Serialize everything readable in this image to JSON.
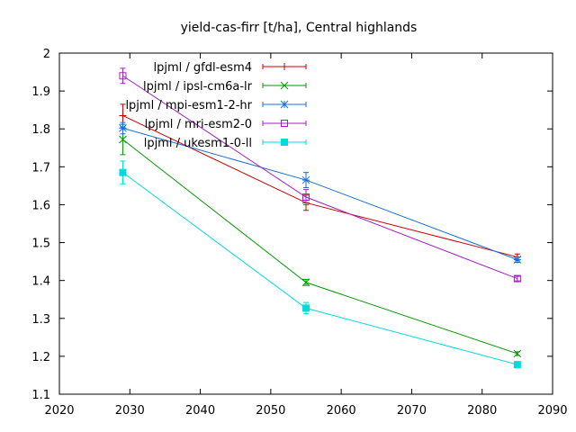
{
  "chart_data": {
    "type": "line",
    "title": "yield-cas-firr [t/ha], Central highlands",
    "xlabel": "",
    "ylabel": "",
    "xlim": [
      2020,
      2090
    ],
    "ylim": [
      1.1,
      2.0
    ],
    "x_ticks": [
      "2020",
      "2030",
      "2040",
      "2050",
      "2060",
      "2070",
      "2080",
      "2090"
    ],
    "y_ticks": [
      "1.1",
      "1.2",
      "1.3",
      "1.4",
      "1.5",
      "1.6",
      "1.7",
      "1.8",
      "1.9",
      "2"
    ],
    "grid": false,
    "legend_position": "top-right",
    "series": [
      {
        "name": "lpjml / gfdl-esm4",
        "color": "#cc0000",
        "marker": "plus",
        "x": [
          2029,
          2055,
          2085
        ],
        "y": [
          1.835,
          1.605,
          1.462
        ],
        "err": [
          0.03,
          0.02,
          0.008
        ]
      },
      {
        "name": "lpjml / ipsl-cm6a-lr",
        "color": "#009900",
        "marker": "cross",
        "x": [
          2029,
          2055,
          2085
        ],
        "y": [
          1.772,
          1.395,
          1.207
        ],
        "err": [
          0.04,
          0.008,
          0.005
        ]
      },
      {
        "name": "lpjml / mpi-esm1-2-hr",
        "color": "#1a6fd6",
        "marker": "star",
        "x": [
          2029,
          2055,
          2085
        ],
        "y": [
          1.802,
          1.665,
          1.455
        ],
        "err": [
          0.015,
          0.02,
          0.007
        ]
      },
      {
        "name": "lpjml / mri-esm2-0",
        "color": "#a020c0",
        "marker": "square-open",
        "x": [
          2029,
          2055,
          2085
        ],
        "y": [
          1.94,
          1.62,
          1.405
        ],
        "err": [
          0.02,
          0.02,
          0.006
        ]
      },
      {
        "name": "lpjml / ukesm1-0-ll",
        "color": "#00dada",
        "marker": "square-filled",
        "x": [
          2029,
          2055,
          2085
        ],
        "y": [
          1.685,
          1.327,
          1.178
        ],
        "err": [
          0.03,
          0.015,
          0.005
        ]
      }
    ]
  }
}
